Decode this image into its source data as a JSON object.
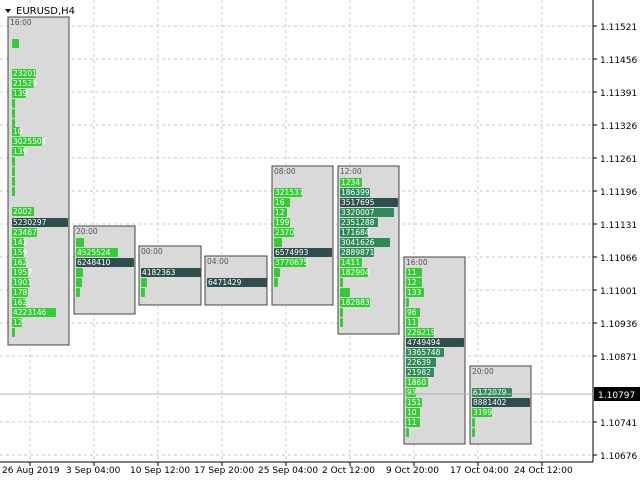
{
  "window": {
    "symbol_label": "EURUSD,H4"
  },
  "colors": {
    "background": "#ffffff",
    "grid": "#c8c8c8",
    "panel_fill": "#d9d9d9",
    "panel_border": "#444444",
    "bar_light": "#33cc33",
    "bar_mid": "#2e8b57",
    "bar_dark": "#2f4f4f",
    "current_price_bg": "#000000"
  },
  "price_axis": {
    "labels": [
      "1.11521",
      "1.11456",
      "1.11391",
      "1.11326",
      "1.11261",
      "1.11196",
      "1.11131",
      "1.11066",
      "1.11001",
      "1.10936",
      "1.10871",
      "1.10741",
      "1.10676"
    ],
    "current_price": "1.10797"
  },
  "time_axis": {
    "labels": [
      "26 Aug 2019",
      "3 Sep 04:00",
      "10 Sep 12:00",
      "17 Sep 20:00",
      "25 Sep 04:00",
      "2 Oct 12:00",
      "9 Oct 20:00",
      "17 Oct 04:00",
      "24 Oct 12:00"
    ]
  },
  "panels": [
    {
      "time": "16:00",
      "labels": [
        "23201",
        "21529",
        "139",
        "10",
        "3025504",
        "139",
        "2002",
        "5230297",
        "23467",
        "142",
        "159",
        "162",
        "1957",
        "1901",
        "178",
        "162",
        "4223146",
        "12"
      ]
    },
    {
      "time": "20:00",
      "labels": [
        "4525524",
        "6248410"
      ]
    },
    {
      "time": "00:00",
      "labels": [
        "4182363"
      ]
    },
    {
      "time": "04:00",
      "labels": [
        "6471429"
      ]
    },
    {
      "time": "08:00",
      "labels": [
        "321537",
        "16",
        "12",
        "199",
        "2370",
        "6574993",
        "3770675"
      ]
    },
    {
      "time": "12:00",
      "labels": [
        "1234",
        "186399",
        "3517695",
        "3320007",
        "2351288",
        "171684",
        "3041626",
        "2889871",
        "1411",
        "182904",
        "182883"
      ]
    },
    {
      "time": "16:00",
      "labels": [
        "11",
        "12",
        "133",
        "96",
        "11",
        "226219",
        "4749494",
        "3365748",
        "22639",
        "21982",
        "1860",
        "93",
        "151",
        "10",
        "11"
      ]
    },
    {
      "time": "20:00",
      "labels": [
        "6172079",
        "8881402",
        "3199"
      ]
    }
  ]
}
